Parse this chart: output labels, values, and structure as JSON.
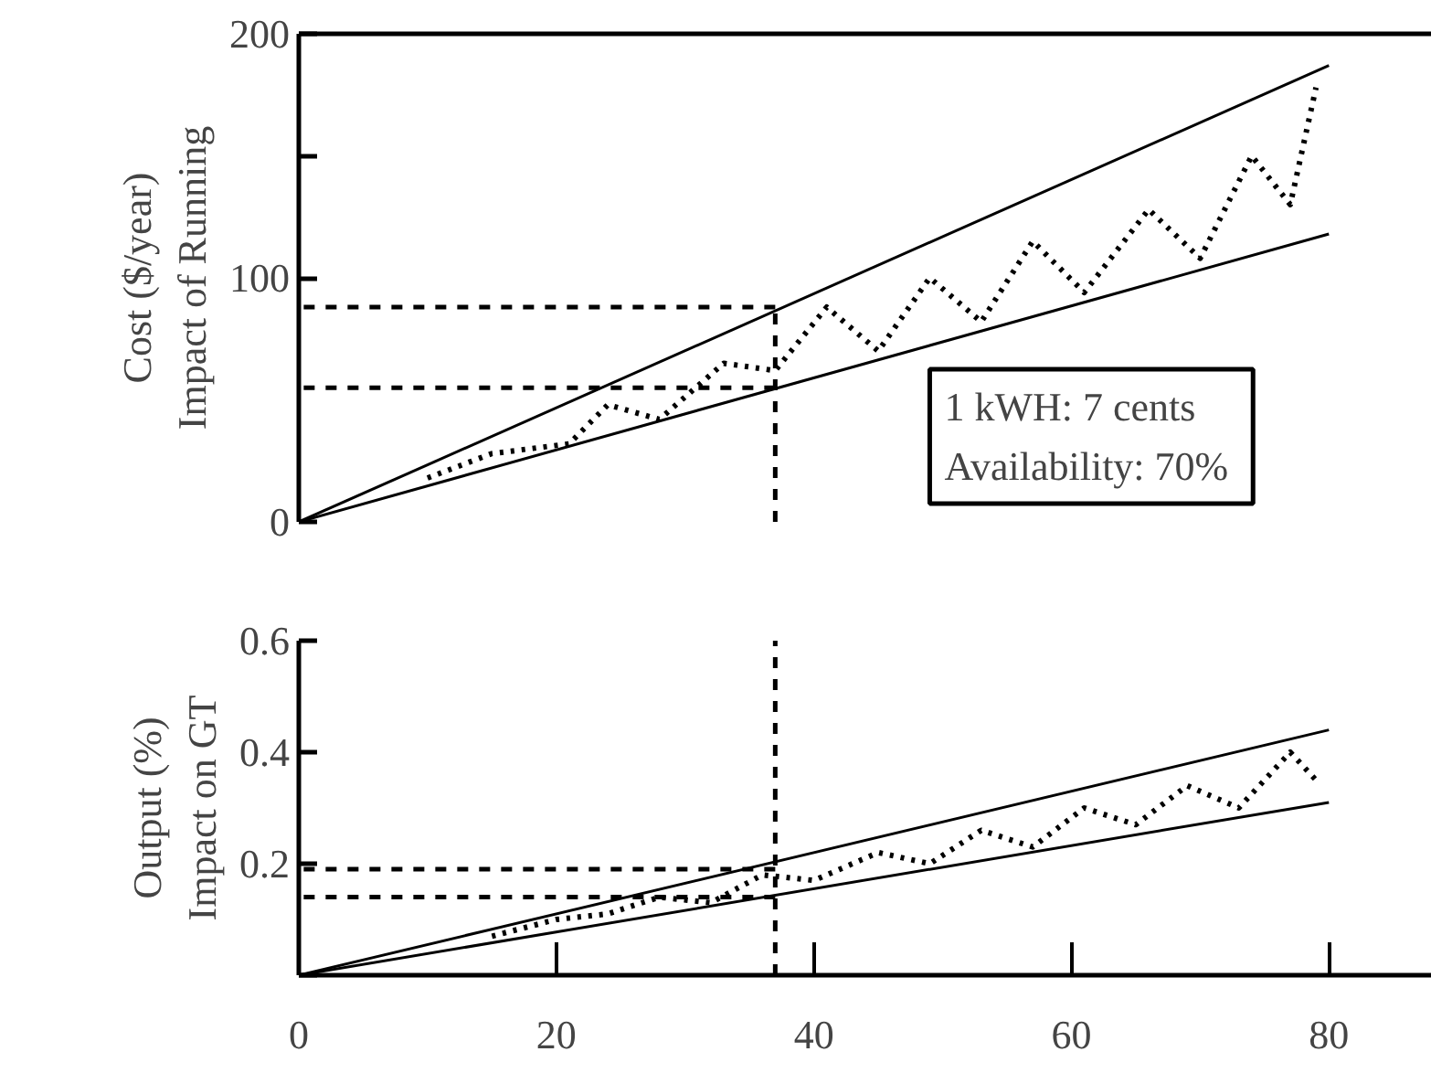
{
  "chart_data": [
    {
      "type": "line",
      "ylabel": "Cost ($/year)\nImpact of Running",
      "xlim": [
        0,
        88
      ],
      "ylim": [
        0,
        200
      ],
      "yticks": [
        0,
        100,
        {
          "value": 150,
          "label": null
        },
        200
      ],
      "tick_labels": "y",
      "grid": false,
      "line_style": "solid",
      "series": [
        {
          "color": "#000000",
          "x": [
            0,
            80
          ],
          "values": [
            0,
            187
          ]
        },
        {
          "color": "#000000",
          "x": [
            0,
            80
          ],
          "values": [
            0,
            118
          ]
        },
        {
          "color": "#000000",
          "line_style": "dotted",
          "x": [
            10,
            15,
            21,
            24,
            28,
            33,
            37,
            41,
            45,
            49,
            53,
            57,
            61,
            66,
            70,
            74,
            77,
            79
          ],
          "values": [
            18,
            28,
            32,
            48,
            42,
            65,
            62,
            88,
            70,
            100,
            82,
            115,
            94,
            128,
            108,
            150,
            130,
            178
          ]
        }
      ],
      "ref_lines": [
        {
          "axis": "x",
          "value": 37,
          "line_style": "dashed",
          "color": "#000000"
        },
        {
          "axis": "y",
          "value": 88,
          "line_style": "dashed",
          "color": "#000000"
        },
        {
          "axis": "y",
          "value": 55,
          "line_style": "dashed",
          "color": "#000000"
        }
      ],
      "annotations": [
        "1 kWH:  7 cents",
        "Availability:  70%"
      ]
    },
    {
      "type": "line",
      "ylabel": "Output (%)\nImpact on GT",
      "xlim": [
        0,
        88
      ],
      "xticks": [
        0,
        20,
        40,
        60,
        80
      ],
      "ylim": [
        0,
        0.6
      ],
      "yticks": [
        {
          "value": 0,
          "label": null
        },
        0.2,
        0.4,
        0.6
      ],
      "grid": false,
      "line_style": "solid",
      "series": [
        {
          "color": "#000000",
          "x": [
            0,
            80
          ],
          "values": [
            0,
            0.44
          ]
        },
        {
          "color": "#000000",
          "x": [
            0,
            80
          ],
          "values": [
            0,
            0.31
          ]
        },
        {
          "color": "#000000",
          "line_style": "dotted",
          "x": [
            15,
            20,
            24,
            28,
            32,
            36,
            40,
            45,
            49,
            53,
            57,
            61,
            65,
            69,
            73,
            77,
            79
          ],
          "values": [
            0.07,
            0.1,
            0.11,
            0.14,
            0.13,
            0.18,
            0.17,
            0.22,
            0.2,
            0.26,
            0.23,
            0.3,
            0.27,
            0.34,
            0.3,
            0.4,
            0.35
          ]
        }
      ],
      "ref_lines": [
        {
          "axis": "x",
          "value": 37,
          "line_style": "dashed",
          "color": "#000000"
        },
        {
          "axis": "y",
          "value": 0.19,
          "line_style": "dashed",
          "color": "#000000"
        },
        {
          "axis": "y",
          "value": 0.14,
          "line_style": "dashed",
          "color": "#000000"
        }
      ]
    }
  ]
}
